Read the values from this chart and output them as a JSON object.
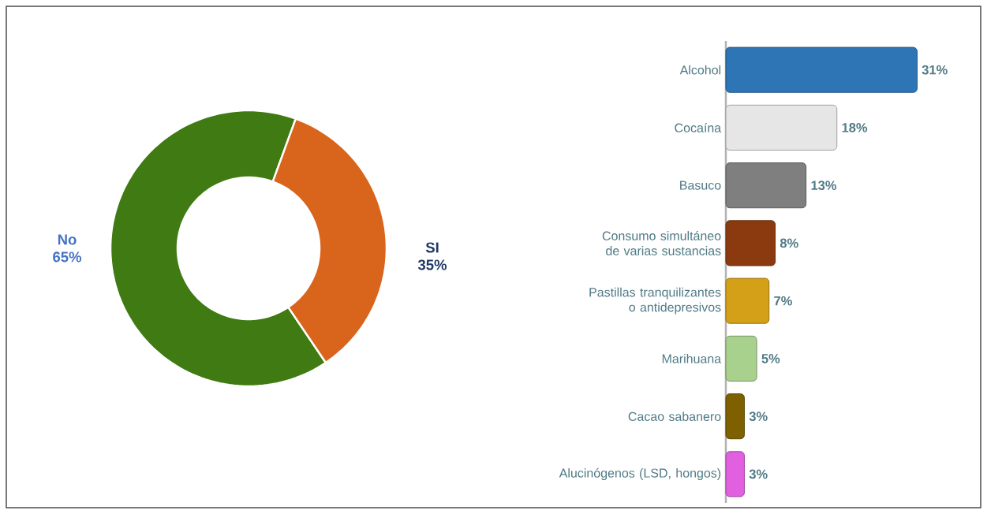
{
  "chart_data": [
    {
      "type": "donut",
      "categories": [
        "No",
        "SI"
      ],
      "values": [
        65,
        35
      ],
      "colors": [
        "#3f7a12",
        "#d9641c"
      ],
      "value_labels": [
        "65%",
        "35%"
      ]
    },
    {
      "type": "bar",
      "orientation": "horizontal",
      "categories": [
        "Alcohol",
        "Cocaína",
        "Basuco",
        "Consumo simultáneo de varias sustancias",
        "Pastillas tranquilizantes o antidepresivos",
        "Marihuana",
        "Cacao sabanero",
        "Alucinógenos (LSD, hongos)"
      ],
      "values": [
        31,
        18,
        13,
        8,
        7,
        5,
        3,
        3
      ],
      "colors": [
        "#2e75b6",
        "#e6e6e6",
        "#7f7f7f",
        "#8b3a0f",
        "#d4a017",
        "#a9d18e",
        "#7f6000",
        "#e060e0"
      ],
      "value_labels": [
        "31%",
        "18%",
        "13%",
        "8%",
        "7%",
        "5%",
        "3%",
        "3%"
      ]
    }
  ]
}
